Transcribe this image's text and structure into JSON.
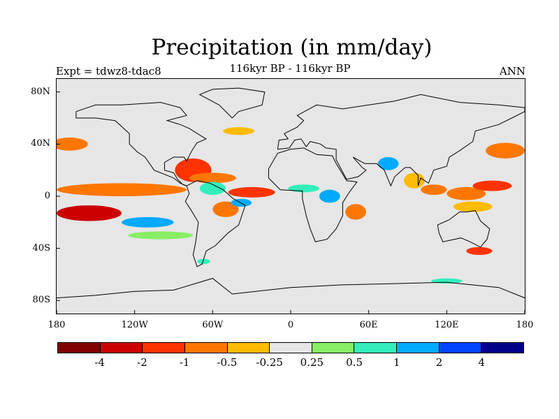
{
  "title": "Precipitation (in mm/day)",
  "subtitle": "116kyr BP - 116kyr BP",
  "left_label": "Expt = tdwz8-tdac8",
  "right_label": "ANN",
  "axes": {
    "y_labels": [
      "80N",
      "40N",
      "0",
      "40S",
      "80S"
    ],
    "y_values": [
      80,
      40,
      0,
      -40,
      -80
    ],
    "x_labels": [
      "180",
      "120W",
      "60W",
      "0",
      "60E",
      "120E",
      "180"
    ],
    "x_values": [
      -180,
      -120,
      -60,
      0,
      60,
      120,
      180
    ],
    "lon_range": [
      -180,
      180
    ],
    "lat_range": [
      -90,
      90
    ]
  },
  "colorbar": {
    "colors": [
      "#800000",
      "#cc0000",
      "#ff3300",
      "#ff7700",
      "#ffbb00",
      "#e6e6e6",
      "#88ee66",
      "#33eebb",
      "#00aaff",
      "#0044ff",
      "#000088"
    ],
    "labels": [
      "-4",
      "-2",
      "-1",
      "-0.5",
      "-0.25",
      "0.25",
      "0.5",
      "1",
      "2",
      "4"
    ],
    "label_boundaries": [
      1,
      2,
      3,
      4,
      5,
      6,
      7,
      8,
      9,
      10
    ]
  },
  "anomaly_regions": [
    {
      "lon": -130,
      "lat": 5,
      "rlon": 50,
      "rlat": 5,
      "level": 3
    },
    {
      "lon": -155,
      "lat": -13,
      "rlon": 25,
      "rlat": 6,
      "level": 1
    },
    {
      "lon": -170,
      "lat": 40,
      "rlon": 14,
      "rlat": 5,
      "level": 3
    },
    {
      "lon": -75,
      "lat": 20,
      "rlon": 14,
      "rlat": 9,
      "level": 2
    },
    {
      "lon": -60,
      "lat": 14,
      "rlon": 18,
      "rlat": 4,
      "level": 3
    },
    {
      "lon": -30,
      "lat": 3,
      "rlon": 18,
      "rlat": 4,
      "level": 2
    },
    {
      "lon": -50,
      "lat": -10,
      "rlon": 10,
      "rlat": 6,
      "level": 3
    },
    {
      "lon": -60,
      "lat": 6,
      "rlon": 10,
      "rlat": 5,
      "level": 7
    },
    {
      "lon": -38,
      "lat": -5,
      "rlon": 8,
      "rlat": 3,
      "level": 8
    },
    {
      "lon": -110,
      "lat": -20,
      "rlon": 20,
      "rlat": 4,
      "level": 8
    },
    {
      "lon": -100,
      "lat": -30,
      "rlon": 25,
      "rlat": 3,
      "level": 6
    },
    {
      "lon": 10,
      "lat": 6,
      "rlon": 12,
      "rlat": 3,
      "level": 7
    },
    {
      "lon": 30,
      "lat": 0,
      "rlon": 8,
      "rlat": 5,
      "level": 8
    },
    {
      "lon": 50,
      "lat": -12,
      "rlon": 8,
      "rlat": 6,
      "level": 3
    },
    {
      "lon": 75,
      "lat": 25,
      "rlon": 8,
      "rlat": 5,
      "level": 8
    },
    {
      "lon": 95,
      "lat": 12,
      "rlon": 8,
      "rlat": 6,
      "level": 4
    },
    {
      "lon": 110,
      "lat": 5,
      "rlon": 10,
      "rlat": 4,
      "level": 3
    },
    {
      "lon": 135,
      "lat": 2,
      "rlon": 15,
      "rlat": 5,
      "level": 3
    },
    {
      "lon": 155,
      "lat": 8,
      "rlon": 15,
      "rlat": 4,
      "level": 2
    },
    {
      "lon": 165,
      "lat": 35,
      "rlon": 15,
      "rlat": 6,
      "level": 3
    },
    {
      "lon": 140,
      "lat": -8,
      "rlon": 15,
      "rlat": 4,
      "level": 4
    },
    {
      "lon": 145,
      "lat": -42,
      "rlon": 10,
      "rlat": 3,
      "level": 2
    },
    {
      "lon": 120,
      "lat": -65,
      "rlon": 12,
      "rlat": 2,
      "level": 7
    },
    {
      "lon": -67,
      "lat": -50,
      "rlon": 5,
      "rlat": 2,
      "level": 7
    },
    {
      "lon": -40,
      "lat": 50,
      "rlon": 12,
      "rlat": 3,
      "level": 4
    }
  ],
  "coastlines": {
    "north_america": [
      [
        -165,
        65
      ],
      [
        -150,
        70
      ],
      [
        -130,
        70
      ],
      [
        -100,
        72
      ],
      [
        -85,
        68
      ],
      [
        -80,
        62
      ],
      [
        -95,
        58
      ],
      [
        -85,
        55
      ],
      [
        -78,
        52
      ],
      [
        -70,
        47
      ],
      [
        -65,
        44
      ],
      [
        -72,
        41
      ],
      [
        -76,
        35
      ],
      [
        -80,
        27
      ],
      [
        -82,
        30
      ],
      [
        -90,
        30
      ],
      [
        -97,
        26
      ],
      [
        -97,
        20
      ],
      [
        -90,
        18
      ],
      [
        -87,
        13
      ],
      [
        -83,
        9
      ],
      [
        -80,
        8
      ],
      [
        -85,
        10
      ],
      [
        -90,
        14
      ],
      [
        -105,
        20
      ],
      [
        -112,
        30
      ],
      [
        -118,
        34
      ],
      [
        -124,
        40
      ],
      [
        -124,
        48
      ],
      [
        -135,
        58
      ],
      [
        -150,
        60
      ],
      [
        -165,
        60
      ],
      [
        -165,
        65
      ]
    ],
    "south_america": [
      [
        -80,
        8
      ],
      [
        -72,
        12
      ],
      [
        -62,
        10
      ],
      [
        -52,
        5
      ],
      [
        -44,
        -2
      ],
      [
        -35,
        -7
      ],
      [
        -40,
        -22
      ],
      [
        -48,
        -28
      ],
      [
        -58,
        -38
      ],
      [
        -65,
        -42
      ],
      [
        -68,
        -52
      ],
      [
        -72,
        -54
      ],
      [
        -75,
        -45
      ],
      [
        -73,
        -35
      ],
      [
        -71,
        -20
      ],
      [
        -77,
        -10
      ],
      [
        -81,
        -4
      ],
      [
        -78,
        2
      ],
      [
        -80,
        8
      ]
    ],
    "africa": [
      [
        -17,
        21
      ],
      [
        -10,
        33
      ],
      [
        0,
        36
      ],
      [
        10,
        37
      ],
      [
        20,
        32
      ],
      [
        32,
        31
      ],
      [
        35,
        25
      ],
      [
        43,
        12
      ],
      [
        51,
        11
      ],
      [
        45,
        3
      ],
      [
        40,
        -5
      ],
      [
        40,
        -15
      ],
      [
        35,
        -25
      ],
      [
        28,
        -33
      ],
      [
        19,
        -35
      ],
      [
        15,
        -25
      ],
      [
        12,
        -15
      ],
      [
        9,
        -2
      ],
      [
        9,
        4
      ],
      [
        -8,
        5
      ],
      [
        -17,
        14
      ],
      [
        -17,
        21
      ]
    ],
    "eurasia": [
      [
        -10,
        36
      ],
      [
        -9,
        43
      ],
      [
        -2,
        44
      ],
      [
        -5,
        48
      ],
      [
        5,
        53
      ],
      [
        10,
        58
      ],
      [
        5,
        62
      ],
      [
        20,
        70
      ],
      [
        40,
        67
      ],
      [
        60,
        70
      ],
      [
        80,
        73
      ],
      [
        100,
        78
      ],
      [
        130,
        72
      ],
      [
        160,
        70
      ],
      [
        180,
        68
      ],
      [
        180,
        65
      ],
      [
        170,
        60
      ],
      [
        160,
        55
      ],
      [
        142,
        50
      ],
      [
        140,
        42
      ],
      [
        130,
        35
      ],
      [
        122,
        30
      ],
      [
        120,
        23
      ],
      [
        110,
        20
      ],
      [
        106,
        10
      ],
      [
        100,
        14
      ],
      [
        98,
        8
      ],
      [
        98,
        16
      ],
      [
        92,
        22
      ],
      [
        88,
        22
      ],
      [
        80,
        15
      ],
      [
        77,
        8
      ],
      [
        72,
        20
      ],
      [
        66,
        25
      ],
      [
        57,
        25
      ],
      [
        48,
        30
      ],
      [
        55,
        22
      ],
      [
        58,
        20
      ],
      [
        52,
        15
      ],
      [
        43,
        13
      ],
      [
        35,
        28
      ],
      [
        35,
        36
      ],
      [
        27,
        37
      ],
      [
        23,
        40
      ],
      [
        15,
        42
      ],
      [
        12,
        38
      ],
      [
        8,
        44
      ],
      [
        3,
        43
      ],
      [
        -1,
        37
      ],
      [
        -10,
        36
      ]
    ],
    "australia": [
      [
        113,
        -22
      ],
      [
        122,
        -18
      ],
      [
        130,
        -12
      ],
      [
        136,
        -12
      ],
      [
        142,
        -11
      ],
      [
        146,
        -19
      ],
      [
        153,
        -25
      ],
      [
        151,
        -33
      ],
      [
        146,
        -39
      ],
      [
        138,
        -35
      ],
      [
        131,
        -32
      ],
      [
        117,
        -35
      ],
      [
        114,
        -28
      ],
      [
        113,
        -22
      ]
    ],
    "greenland": [
      [
        -45,
        60
      ],
      [
        -40,
        65
      ],
      [
        -22,
        70
      ],
      [
        -20,
        80
      ],
      [
        -40,
        83
      ],
      [
        -60,
        82
      ],
      [
        -70,
        78
      ],
      [
        -55,
        70
      ],
      [
        -45,
        60
      ]
    ],
    "antarctica": [
      [
        -180,
        -78
      ],
      [
        -150,
        -76
      ],
      [
        -120,
        -73
      ],
      [
        -90,
        -72
      ],
      [
        -60,
        -63
      ],
      [
        -45,
        -75
      ],
      [
        0,
        -70
      ],
      [
        40,
        -68
      ],
      [
        80,
        -67
      ],
      [
        120,
        -66
      ],
      [
        160,
        -70
      ],
      [
        180,
        -78
      ]
    ]
  }
}
